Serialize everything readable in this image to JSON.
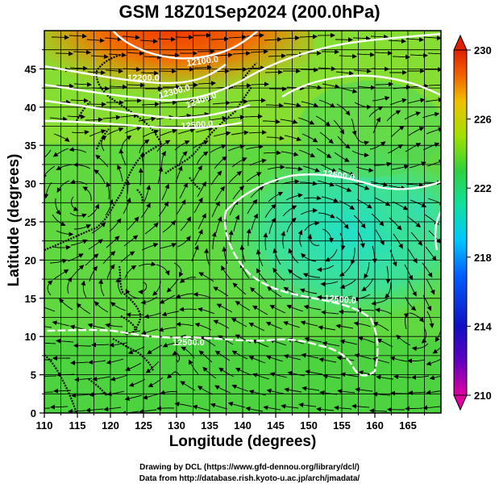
{
  "title": "GSM 18Z01Sep2024 (200.0hPa)",
  "axes": {
    "xlabel": "Longitude (degrees)",
    "ylabel": "Latitude  (degrees)",
    "x_ticks": [
      "110",
      "115",
      "120",
      "125",
      "130",
      "135",
      "140",
      "145",
      "150",
      "155",
      "160",
      "165"
    ],
    "y_ticks": [
      "0",
      "5",
      "10",
      "15",
      "20",
      "25",
      "30",
      "35",
      "40",
      "45"
    ],
    "xlim": [
      110,
      170
    ],
    "ylim": [
      0,
      50
    ]
  },
  "colorbar": {
    "labels": [
      "230",
      "226",
      "222",
      "218",
      "214",
      "210"
    ],
    "range": [
      210,
      230
    ],
    "colors": [
      "#e0007a",
      "#3a00c8",
      "#0040ff",
      "#00b0ff",
      "#20e0c0",
      "#30d030",
      "#a0e000",
      "#f0d000",
      "#f08000",
      "#e02000"
    ]
  },
  "contours": [
    {
      "label": "12100.0"
    },
    {
      "label": "12200.0"
    },
    {
      "label": "12300.0"
    },
    {
      "label": "12400.0"
    },
    {
      "label": "12500.0"
    },
    {
      "label": "12500.0"
    },
    {
      "label": "12500.0"
    },
    {
      "label": "12500.0"
    }
  ],
  "credits": {
    "line1": "Drawing by DCL (https://www.gfd-dennou.org/library/dcl/)",
    "line2": "Data from http://database.rish.kyoto-u.ac.jp/arch/jmadata/"
  }
}
